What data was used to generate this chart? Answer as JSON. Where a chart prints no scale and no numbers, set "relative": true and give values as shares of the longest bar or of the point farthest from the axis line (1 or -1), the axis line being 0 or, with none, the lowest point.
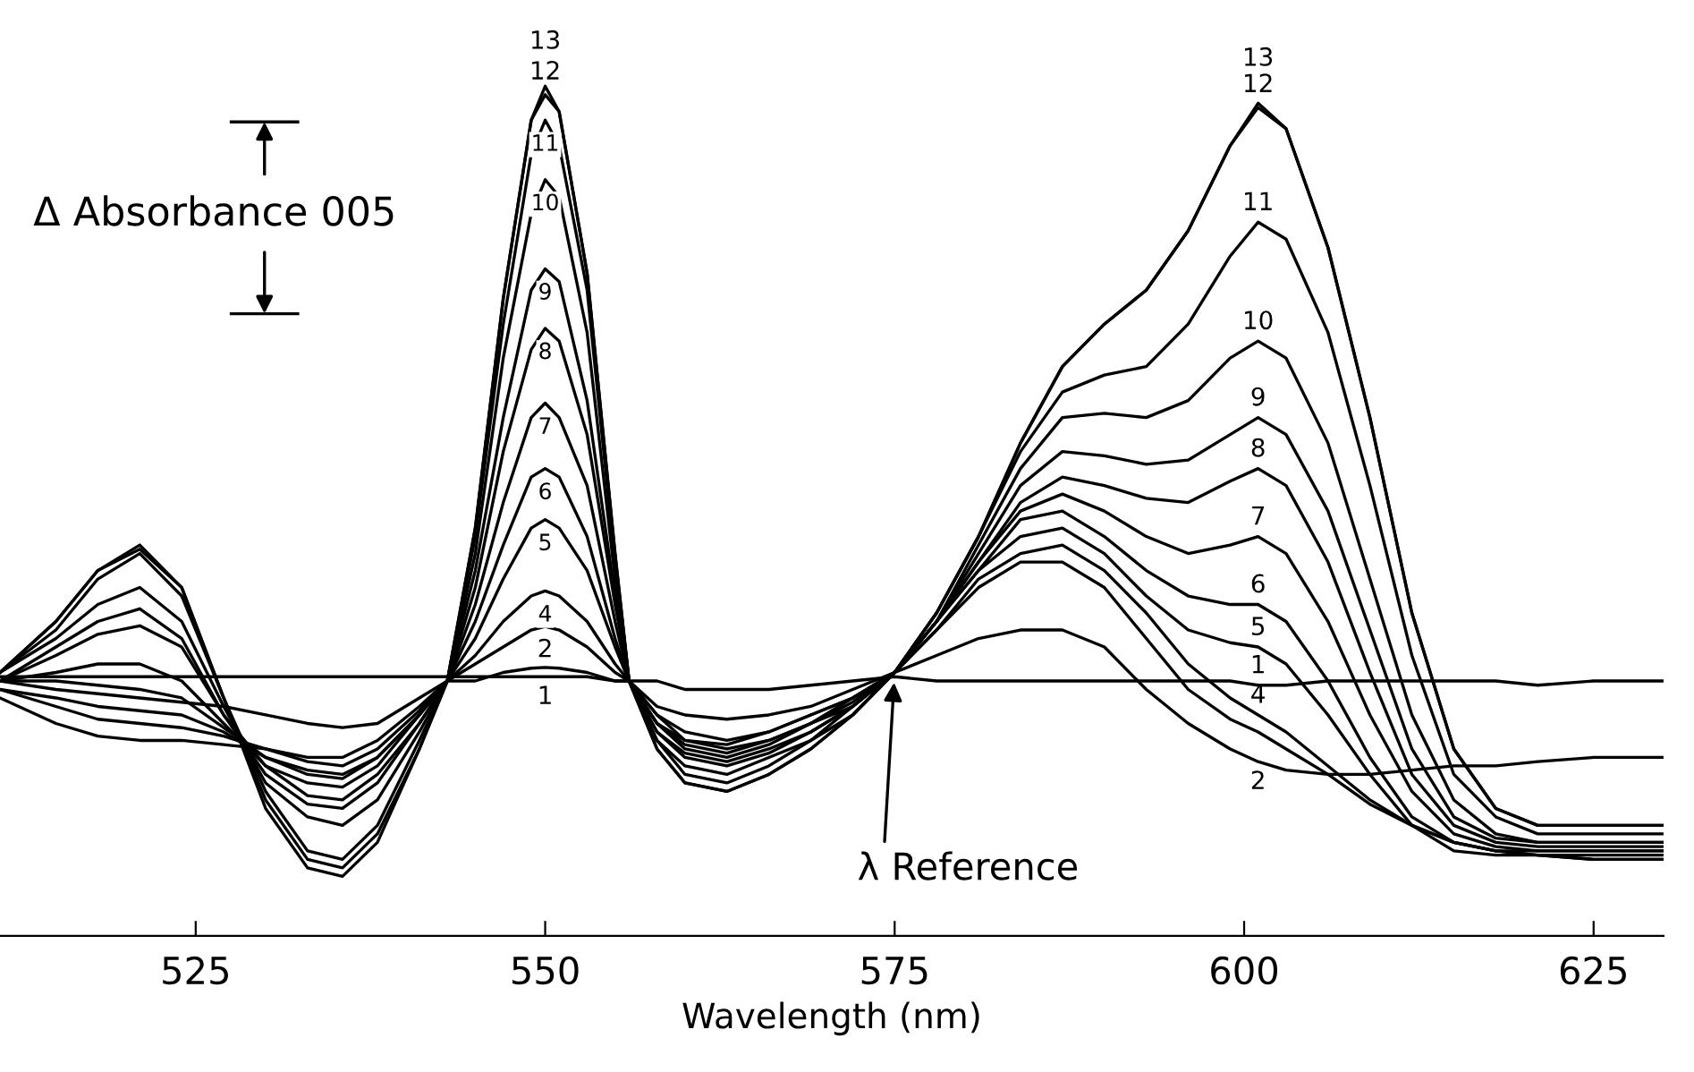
{
  "chart_data": {
    "type": "line",
    "relative": true,
    "xlabel": "Wavelength (nm)",
    "xlim": [
      511,
      630
    ],
    "xticks": [
      525,
      550,
      575,
      600,
      625
    ],
    "annotations": [
      "Δ Absorbance 005",
      {
        "text": "λ Reference",
        "x": 575,
        "y": 0.31
      }
    ],
    "x": [
      511,
      515,
      518,
      521,
      524,
      527,
      530,
      533,
      535.5,
      538,
      541,
      543,
      545,
      547,
      549,
      550,
      551,
      553,
      555,
      556,
      558,
      560,
      563,
      566,
      569,
      572,
      575,
      578,
      581,
      584,
      587,
      590,
      593,
      596,
      599,
      601,
      603,
      606,
      609,
      612,
      615,
      618,
      621,
      625,
      630
    ],
    "series": [
      {
        "name": "1",
        "color": "#000000",
        "values": [
          0.305,
          0.305,
          0.305,
          0.305,
          0.305,
          0.305,
          0.305,
          0.305,
          0.305,
          0.305,
          0.305,
          0.305,
          0.305,
          0.305,
          0.305,
          0.305,
          0.305,
          0.305,
          0.3,
          0.3,
          0.3,
          0.29,
          0.29,
          0.29,
          0.295,
          0.3,
          0.305,
          0.3,
          0.3,
          0.3,
          0.3,
          0.3,
          0.3,
          0.3,
          0.3,
          0.295,
          0.295,
          0.3,
          0.3,
          0.3,
          0.3,
          0.3,
          0.295,
          0.3,
          0.3
        ]
      },
      {
        "name": "2",
        "color": "#000000",
        "values": [
          0.3,
          0.29,
          0.285,
          0.28,
          0.275,
          0.27,
          0.26,
          0.25,
          0.245,
          0.25,
          0.28,
          0.3,
          0.3,
          0.31,
          0.315,
          0.316,
          0.315,
          0.31,
          0.3,
          0.3,
          0.27,
          0.26,
          0.255,
          0.26,
          0.27,
          0.29,
          0.31,
          0.33,
          0.35,
          0.36,
          0.36,
          0.34,
          0.29,
          0.25,
          0.22,
          0.205,
          0.195,
          0.19,
          0.19,
          0.195,
          0.2,
          0.2,
          0.205,
          0.21,
          0.21
        ]
      },
      {
        "color": "#000000",
        "values": [
          0.28,
          0.25,
          0.235,
          0.23,
          0.23,
          0.225,
          0.22,
          0.21,
          0.21,
          0.23,
          0.27,
          0.3,
          0.32,
          0.34,
          0.36,
          0.364,
          0.36,
          0.34,
          0.31,
          0.3,
          0.26,
          0.24,
          0.23,
          0.24,
          0.26,
          0.28,
          0.31,
          0.36,
          0.41,
          0.44,
          0.44,
          0.41,
          0.35,
          0.29,
          0.255,
          0.24,
          0.22,
          0.19,
          0.155,
          0.13,
          0.11,
          0.1,
          0.095,
          0.09,
          0.09
        ]
      },
      {
        "name": "4",
        "color": "#000000",
        "values": [
          0.29,
          0.27,
          0.255,
          0.25,
          0.245,
          0.235,
          0.22,
          0.205,
          0.2,
          0.22,
          0.265,
          0.3,
          0.33,
          0.37,
          0.4,
          0.406,
          0.4,
          0.37,
          0.32,
          0.3,
          0.26,
          0.23,
          0.225,
          0.24,
          0.26,
          0.28,
          0.31,
          0.36,
          0.42,
          0.45,
          0.46,
          0.43,
          0.38,
          0.32,
          0.28,
          0.26,
          0.24,
          0.2,
          0.16,
          0.13,
          0.11,
          0.1,
          0.095,
          0.09,
          0.09
        ]
      },
      {
        "name": "5",
        "color": "#000000",
        "values": [
          0.29,
          0.28,
          0.27,
          0.265,
          0.26,
          0.24,
          0.21,
          0.195,
          0.19,
          0.21,
          0.26,
          0.3,
          0.35,
          0.42,
          0.48,
          0.49,
          0.48,
          0.43,
          0.34,
          0.3,
          0.25,
          0.23,
          0.22,
          0.23,
          0.25,
          0.28,
          0.31,
          0.37,
          0.43,
          0.47,
          0.48,
          0.45,
          0.4,
          0.36,
          0.345,
          0.34,
          0.32,
          0.26,
          0.19,
          0.13,
          0.1,
          0.095,
          0.095,
          0.095,
          0.095
        ]
      },
      {
        "name": "6",
        "color": "#000000",
        "values": [
          0.3,
          0.3,
          0.295,
          0.29,
          0.28,
          0.245,
          0.21,
          0.19,
          0.185,
          0.21,
          0.26,
          0.3,
          0.37,
          0.46,
          0.54,
          0.55,
          0.54,
          0.47,
          0.35,
          0.3,
          0.25,
          0.225,
          0.215,
          0.23,
          0.25,
          0.275,
          0.31,
          0.37,
          0.43,
          0.49,
          0.5,
          0.47,
          0.43,
          0.4,
          0.39,
          0.39,
          0.37,
          0.3,
          0.21,
          0.14,
          0.11,
          0.1,
          0.1,
          0.1,
          0.1
        ]
      },
      {
        "name": "7",
        "color": "#000000",
        "values": [
          0.3,
          0.31,
          0.32,
          0.32,
          0.3,
          0.25,
          0.2,
          0.18,
          0.175,
          0.2,
          0.26,
          0.3,
          0.39,
          0.51,
          0.61,
          0.627,
          0.61,
          0.53,
          0.37,
          0.3,
          0.25,
          0.22,
          0.21,
          0.225,
          0.25,
          0.27,
          0.31,
          0.37,
          0.44,
          0.5,
          0.52,
          0.5,
          0.47,
          0.45,
          0.46,
          0.47,
          0.45,
          0.37,
          0.26,
          0.17,
          0.12,
          0.105,
          0.1,
          0.1,
          0.1
        ]
      },
      {
        "name": "8",
        "color": "#000000",
        "values": [
          0.3,
          0.33,
          0.355,
          0.365,
          0.34,
          0.26,
          0.2,
          0.165,
          0.16,
          0.19,
          0.25,
          0.3,
          0.41,
          0.57,
          0.69,
          0.715,
          0.7,
          0.59,
          0.39,
          0.3,
          0.24,
          0.215,
          0.205,
          0.22,
          0.24,
          0.27,
          0.31,
          0.37,
          0.44,
          0.51,
          0.54,
          0.53,
          0.515,
          0.51,
          0.535,
          0.55,
          0.53,
          0.44,
          0.31,
          0.19,
          0.13,
          0.11,
          0.105,
          0.105,
          0.105
        ]
      },
      {
        "name": "9",
        "color": "#000000",
        "values": [
          0.3,
          0.34,
          0.37,
          0.385,
          0.35,
          0.26,
          0.19,
          0.155,
          0.15,
          0.18,
          0.25,
          0.3,
          0.43,
          0.61,
          0.76,
          0.785,
          0.77,
          0.63,
          0.4,
          0.3,
          0.24,
          0.21,
          0.2,
          0.215,
          0.24,
          0.27,
          0.31,
          0.37,
          0.45,
          0.53,
          0.57,
          0.565,
          0.555,
          0.56,
          0.59,
          0.61,
          0.59,
          0.5,
          0.36,
          0.22,
          0.14,
          0.115,
          0.11,
          0.11,
          0.11
        ]
      },
      {
        "name": "10",
        "color": "#000000",
        "values": [
          0.31,
          0.35,
          0.39,
          0.41,
          0.37,
          0.27,
          0.18,
          0.14,
          0.13,
          0.16,
          0.24,
          0.3,
          0.45,
          0.68,
          0.85,
          0.89,
          0.87,
          0.71,
          0.42,
          0.3,
          0.23,
          0.2,
          0.19,
          0.21,
          0.23,
          0.27,
          0.31,
          0.37,
          0.46,
          0.55,
          0.61,
          0.615,
          0.61,
          0.63,
          0.68,
          0.7,
          0.68,
          0.58,
          0.42,
          0.26,
          0.16,
          0.12,
          0.11,
          0.11,
          0.11
        ]
      },
      {
        "name": "11",
        "color": "#000000",
        "values": [
          0.31,
          0.36,
          0.42,
          0.45,
          0.4,
          0.28,
          0.17,
          0.1,
          0.09,
          0.13,
          0.23,
          0.3,
          0.47,
          0.72,
          0.92,
          0.96,
          0.93,
          0.76,
          0.44,
          0.3,
          0.23,
          0.19,
          0.18,
          0.2,
          0.23,
          0.26,
          0.31,
          0.38,
          0.47,
          0.57,
          0.64,
          0.66,
          0.67,
          0.72,
          0.8,
          0.84,
          0.82,
          0.71,
          0.53,
          0.33,
          0.19,
          0.14,
          0.12,
          0.12,
          0.12
        ]
      },
      {
        "name": "12",
        "color": "#000000",
        "values": [
          0.31,
          0.37,
          0.43,
          0.455,
          0.41,
          0.28,
          0.16,
          0.09,
          0.08,
          0.12,
          0.22,
          0.3,
          0.48,
          0.75,
          0.96,
          0.99,
          0.97,
          0.78,
          0.45,
          0.3,
          0.22,
          0.18,
          0.17,
          0.19,
          0.22,
          0.26,
          0.31,
          0.38,
          0.47,
          0.58,
          0.67,
          0.72,
          0.76,
          0.83,
          0.93,
          0.975,
          0.95,
          0.81,
          0.61,
          0.38,
          0.22,
          0.15,
          0.13,
          0.13,
          0.13
        ]
      },
      {
        "name": "13",
        "color": "#000000",
        "values": [
          0.31,
          0.37,
          0.43,
          0.46,
          0.41,
          0.28,
          0.15,
          0.08,
          0.07,
          0.11,
          0.22,
          0.3,
          0.48,
          0.75,
          0.96,
          1.0,
          0.97,
          0.78,
          0.45,
          0.3,
          0.22,
          0.18,
          0.17,
          0.19,
          0.22,
          0.26,
          0.31,
          0.38,
          0.47,
          0.58,
          0.67,
          0.72,
          0.76,
          0.83,
          0.93,
          0.98,
          0.95,
          0.81,
          0.61,
          0.38,
          0.22,
          0.15,
          0.13,
          0.13,
          0.13
        ]
      }
    ]
  }
}
